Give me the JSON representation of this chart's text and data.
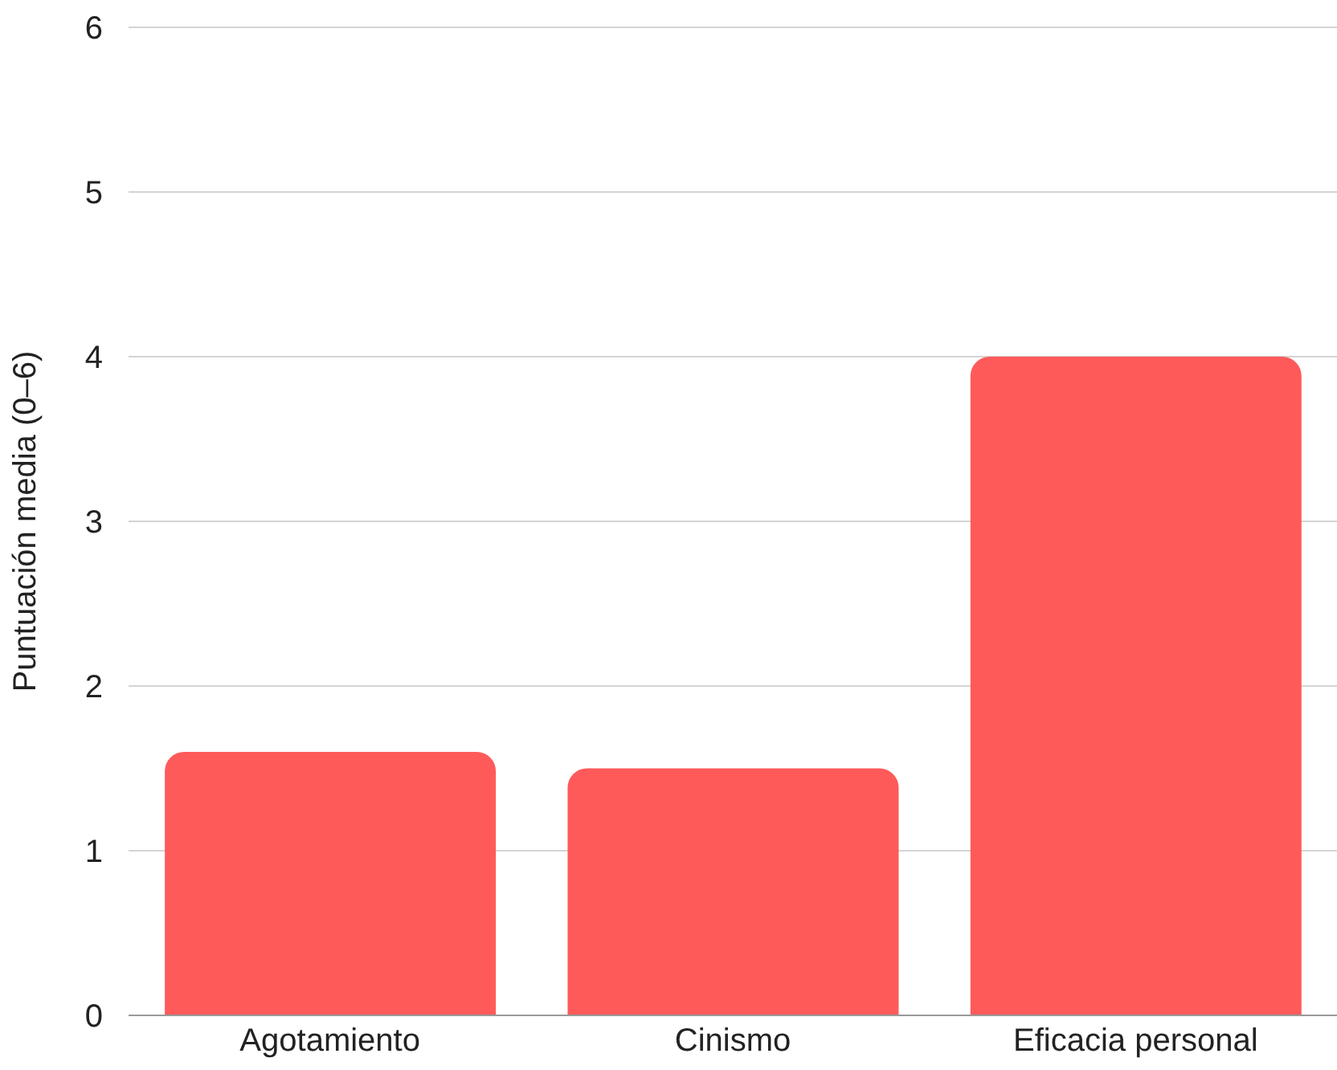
{
  "chart_data": {
    "type": "bar",
    "ylabel": "Puntuación media (0–6)",
    "categories": [
      "Agotamiento",
      "Cinismo",
      "Eficacia personal"
    ],
    "values": [
      1.6,
      1.5,
      4.0
    ],
    "color": "#ff5a5a",
    "ylim": [
      0,
      6
    ],
    "yticks": [
      0,
      1,
      2,
      3,
      4,
      5,
      6
    ],
    "grid": "y",
    "legend": false
  }
}
